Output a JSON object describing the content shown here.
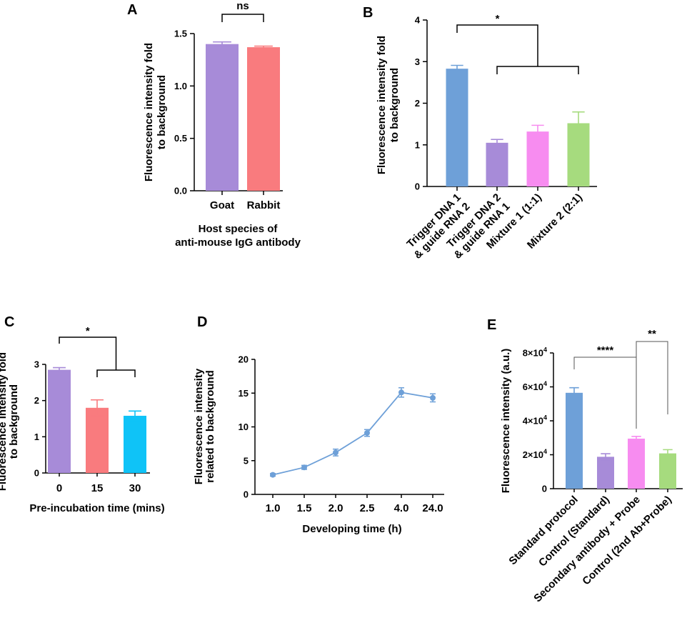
{
  "chart_data": [
    {
      "id": "A",
      "panel_label": "A",
      "type": "bar",
      "categories": [
        "Goat",
        "Rabbit"
      ],
      "values": [
        1.4,
        1.37
      ],
      "errors": [
        0.02,
        0.01
      ],
      "colors": [
        "#a78bd8",
        "#f97b7e"
      ],
      "ylim": [
        0,
        1.5
      ],
      "yticks": [
        "0.0",
        "0.5",
        "1.0",
        "1.5"
      ],
      "ylabel_lines": [
        "Fluorescence intensity fold",
        "to background"
      ],
      "xlabel_lines": [
        "Host species of",
        "anti-mouse IgG antibody"
      ],
      "significance": [
        {
          "label": "ns",
          "from": 0,
          "to": 1
        }
      ]
    },
    {
      "id": "B",
      "panel_label": "B",
      "type": "bar",
      "categories": [
        [
          "Trigger DNA 1",
          "& guide RNA 2"
        ],
        [
          "Trigger DNA 2",
          "& guide RNA 1"
        ],
        [
          "Mixture 1 (1:1)"
        ],
        [
          "Mixture 2 (2:1)"
        ]
      ],
      "values": [
        2.83,
        1.05,
        1.32,
        1.52
      ],
      "errors": [
        0.08,
        0.08,
        0.15,
        0.27
      ],
      "colors": [
        "#6ea0d8",
        "#a78bd8",
        "#f78cf0",
        "#a6db7e"
      ],
      "ylim": [
        0,
        4
      ],
      "yticks": [
        "0",
        "1",
        "2",
        "3",
        "4"
      ],
      "ylabel_lines": [
        "Fluorescence intensity fold",
        "to background"
      ],
      "significance": [
        {
          "label": "*",
          "from": 0,
          "group": [
            1,
            3
          ]
        }
      ]
    },
    {
      "id": "C",
      "panel_label": "C",
      "type": "bar",
      "categories": [
        "0",
        "15",
        "30"
      ],
      "values": [
        2.85,
        1.8,
        1.58
      ],
      "errors": [
        0.06,
        0.22,
        0.13
      ],
      "colors": [
        "#a78bd8",
        "#f97b7e",
        "#0fc3f7"
      ],
      "ylim": [
        0,
        3
      ],
      "yticks": [
        "0",
        "1",
        "2",
        "3"
      ],
      "ylabel_lines": [
        "Fluorescence intensity fold",
        "to background"
      ],
      "xlabel_lines": [
        "Pre-incubation time (mins)"
      ],
      "significance": [
        {
          "label": "*",
          "from": 0,
          "group": [
            1,
            2
          ]
        }
      ]
    },
    {
      "id": "D",
      "panel_label": "D",
      "type": "line",
      "categories": [
        "1.0",
        "1.5",
        "2.0",
        "2.5",
        "4.0",
        "24.0"
      ],
      "values": [
        2.9,
        4.0,
        6.2,
        9.1,
        15.1,
        14.3
      ],
      "errors": [
        0.2,
        0.3,
        0.5,
        0.5,
        0.7,
        0.6
      ],
      "color": "#6ea0d8",
      "ylim": [
        0,
        20
      ],
      "yticks": [
        "0",
        "5",
        "10",
        "15",
        "20"
      ],
      "ylabel_lines": [
        "Fluorescence intensity",
        "related to background"
      ],
      "xlabel_lines": [
        "Developing time (h)"
      ]
    },
    {
      "id": "E",
      "panel_label": "E",
      "type": "bar",
      "categories": [
        [
          "Standard protocol"
        ],
        [
          "Control (Standard)"
        ],
        [
          "Secondary antibody + Probe"
        ],
        [
          "Control (2nd Ab+Probe)"
        ]
      ],
      "values": [
        56500,
        18800,
        29500,
        20800
      ],
      "errors": [
        3000,
        1800,
        1300,
        2200
      ],
      "colors": [
        "#6ea0d8",
        "#a78bd8",
        "#f78cf0",
        "#a6db7e"
      ],
      "ylim": [
        0,
        80000
      ],
      "yticks": [
        {
          "base": "0",
          "exp": ""
        },
        {
          "base": "2×10",
          "exp": "4"
        },
        {
          "base": "4×10",
          "exp": "4"
        },
        {
          "base": "6×10",
          "exp": "4"
        },
        {
          "base": "8×10",
          "exp": "4"
        }
      ],
      "ylabel_lines": [
        "Fluorescence intensity (a.u.)"
      ],
      "significance": [
        {
          "label": "****",
          "from": 0,
          "to": 2
        },
        {
          "label": "**",
          "from": 2,
          "to": 3
        }
      ]
    }
  ]
}
